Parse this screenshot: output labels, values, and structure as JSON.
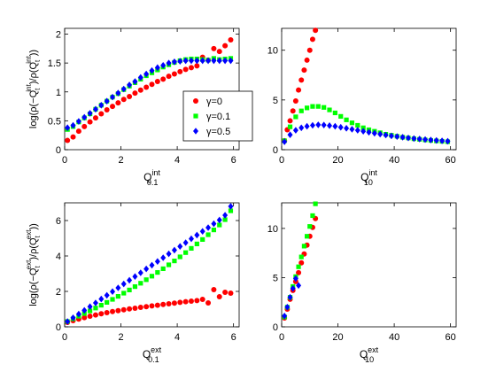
{
  "figure": {
    "colors": {
      "red": "#ff0000",
      "green": "#00ff00",
      "blue": "#0000ff",
      "axis": "#000000"
    },
    "legend_location": "right of top-left panel",
    "markers": {
      "γ=0": "circle",
      "γ=0.1": "square",
      "γ=0.5": "diamond"
    }
  },
  "chart_data": [
    {
      "type": "scatter",
      "panel": "top-left",
      "ylabel": "log(ρ(−Q_t^{int})/ρ(Q_t^{int}))",
      "xlabel": "Q_{0.1}^{int}",
      "ylabel_parts": {
        "pre": "log(ρ(−Q",
        "sub1": "t",
        "sup1": "int",
        "mid": ")/ρ(Q",
        "sub2": "t",
        "sup2": "int",
        "post": "))"
      },
      "xlabel_parts": {
        "base": "Q",
        "sub": "0.1",
        "sup": "int"
      },
      "xlim": [
        0,
        6.2
      ],
      "ylim": [
        0,
        2.1
      ],
      "xticks": [
        0,
        2,
        4,
        6
      ],
      "yticks": [
        0,
        0.5,
        1,
        1.5,
        2
      ],
      "xticklabels": [
        "0",
        "2",
        "4",
        "6"
      ],
      "yticklabels": [
        "0",
        "0.5",
        "1",
        "1.5",
        "2"
      ],
      "legend": [
        "γ=0",
        "γ=0.1",
        "γ=0.5"
      ],
      "series": [
        {
          "name": "γ=0",
          "color": "red",
          "marker": "circle",
          "x": [
            0.1,
            0.3,
            0.5,
            0.7,
            0.9,
            1.1,
            1.3,
            1.5,
            1.7,
            1.9,
            2.1,
            2.3,
            2.5,
            2.7,
            2.9,
            3.1,
            3.3,
            3.5,
            3.7,
            3.9,
            4.1,
            4.3,
            4.5,
            4.7,
            4.9,
            5.1,
            5.3,
            5.5,
            5.7,
            5.9
          ],
          "y": [
            0.16,
            0.22,
            0.32,
            0.4,
            0.48,
            0.55,
            0.62,
            0.69,
            0.75,
            0.81,
            0.87,
            0.92,
            0.98,
            1.03,
            1.08,
            1.13,
            1.18,
            1.22,
            1.27,
            1.31,
            1.35,
            1.39,
            1.42,
            1.45,
            1.6,
            1.55,
            1.75,
            1.7,
            1.8,
            1.9
          ]
        },
        {
          "name": "γ=0.1",
          "color": "green",
          "marker": "square",
          "x": [
            0.1,
            0.3,
            0.5,
            0.7,
            0.9,
            1.1,
            1.3,
            1.5,
            1.7,
            1.9,
            2.1,
            2.3,
            2.5,
            2.7,
            2.9,
            3.1,
            3.3,
            3.5,
            3.7,
            3.9,
            4.1,
            4.3,
            4.5,
            4.7,
            4.9,
            5.1,
            5.3,
            5.5,
            5.7,
            5.9
          ],
          "y": [
            0.35,
            0.4,
            0.48,
            0.55,
            0.62,
            0.7,
            0.77,
            0.84,
            0.91,
            0.97,
            1.04,
            1.1,
            1.16,
            1.22,
            1.28,
            1.33,
            1.38,
            1.43,
            1.47,
            1.51,
            1.54,
            1.56,
            1.57,
            1.57,
            1.56,
            1.55,
            1.58,
            1.56,
            1.57,
            1.58
          ]
        },
        {
          "name": "γ=0.5",
          "color": "blue",
          "marker": "diamond",
          "x": [
            0.1,
            0.3,
            0.5,
            0.7,
            0.9,
            1.1,
            1.3,
            1.5,
            1.7,
            1.9,
            2.1,
            2.3,
            2.5,
            2.7,
            2.9,
            3.1,
            3.3,
            3.5,
            3.7,
            3.9,
            4.1,
            4.3,
            4.5,
            4.7,
            4.9,
            5.1,
            5.3,
            5.5,
            5.7,
            5.9
          ],
          "y": [
            0.38,
            0.42,
            0.49,
            0.56,
            0.63,
            0.7,
            0.77,
            0.84,
            0.91,
            0.98,
            1.05,
            1.12,
            1.18,
            1.25,
            1.31,
            1.37,
            1.42,
            1.46,
            1.5,
            1.52,
            1.53,
            1.54,
            1.54,
            1.54,
            1.54,
            1.54,
            1.54,
            1.54,
            1.54,
            1.54
          ]
        }
      ]
    },
    {
      "type": "scatter",
      "panel": "top-right",
      "xlabel": "Q_{10}^{int}",
      "xlabel_parts": {
        "base": "Q",
        "sub": "10",
        "sup": "int"
      },
      "xlim": [
        0,
        62
      ],
      "ylim": [
        0,
        12.2
      ],
      "xticks": [
        0,
        20,
        40,
        60
      ],
      "yticks": [
        0,
        5,
        10
      ],
      "xticklabels": [
        "0",
        "20",
        "40",
        "60"
      ],
      "yticklabels": [
        "0",
        "5",
        "10"
      ],
      "series": [
        {
          "name": "γ=0",
          "color": "red",
          "marker": "circle",
          "x": [
            1,
            2,
            3,
            4,
            5,
            6,
            7,
            8,
            9,
            10,
            11,
            12
          ],
          "y": [
            0.9,
            2.0,
            2.9,
            3.9,
            4.9,
            6.0,
            7.0,
            8.0,
            9.0,
            10.0,
            11.1,
            12.0
          ]
        },
        {
          "name": "γ=0.1",
          "color": "green",
          "marker": "square",
          "x": [
            1,
            3,
            5,
            7,
            9,
            11,
            13,
            15,
            17,
            19,
            21,
            23,
            25,
            27,
            29,
            31,
            33,
            35,
            37,
            39,
            41,
            43,
            45,
            47,
            49,
            51,
            53,
            55,
            57,
            59
          ],
          "y": [
            0.9,
            2.3,
            3.3,
            3.9,
            4.2,
            4.35,
            4.35,
            4.25,
            4.0,
            3.7,
            3.35,
            3.0,
            2.7,
            2.45,
            2.2,
            2.0,
            1.85,
            1.7,
            1.55,
            1.45,
            1.35,
            1.25,
            1.18,
            1.1,
            1.04,
            0.98,
            0.93,
            0.88,
            0.84,
            0.8
          ]
        },
        {
          "name": "γ=0.5",
          "color": "blue",
          "marker": "diamond",
          "x": [
            1,
            3,
            5,
            7,
            9,
            11,
            13,
            15,
            17,
            19,
            21,
            23,
            25,
            27,
            29,
            31,
            33,
            35,
            37,
            39,
            41,
            43,
            45,
            47,
            49,
            51,
            53,
            55,
            57,
            59
          ],
          "y": [
            0.8,
            1.5,
            1.95,
            2.2,
            2.35,
            2.45,
            2.5,
            2.48,
            2.42,
            2.35,
            2.25,
            2.15,
            2.05,
            1.95,
            1.85,
            1.75,
            1.65,
            1.56,
            1.47,
            1.39,
            1.32,
            1.25,
            1.18,
            1.12,
            1.07,
            1.02,
            0.97,
            0.93,
            0.89,
            0.85
          ]
        }
      ]
    },
    {
      "type": "scatter",
      "panel": "bottom-left",
      "ylabel": "log(ρ(−Q_t^{ext})/ρ(Q_t^{ext}))",
      "xlabel": "Q_{0.1}^{ext}",
      "ylabel_parts": {
        "pre": "log(ρ(−Q",
        "sub1": "t",
        "sup1": "ext",
        "mid": ")/ρ(Q",
        "sub2": "t",
        "sup2": "ext",
        "post": "))"
      },
      "xlabel_parts": {
        "base": "Q",
        "sub": "0.1",
        "sup": "ext"
      },
      "xlim": [
        0,
        6.2
      ],
      "ylim": [
        0,
        7
      ],
      "xticks": [
        0,
        2,
        4,
        6
      ],
      "yticks": [
        0,
        2,
        4,
        6
      ],
      "xticklabels": [
        "0",
        "2",
        "4",
        "6"
      ],
      "yticklabels": [
        "0",
        "2",
        "4",
        "6"
      ],
      "series": [
        {
          "name": "γ=0",
          "color": "red",
          "marker": "circle",
          "x": [
            0.1,
            0.3,
            0.5,
            0.7,
            0.9,
            1.1,
            1.3,
            1.5,
            1.7,
            1.9,
            2.1,
            2.3,
            2.5,
            2.7,
            2.9,
            3.1,
            3.3,
            3.5,
            3.7,
            3.9,
            4.1,
            4.3,
            4.5,
            4.7,
            4.9,
            5.1,
            5.3,
            5.5,
            5.7,
            5.9
          ],
          "y": [
            0.25,
            0.35,
            0.44,
            0.52,
            0.6,
            0.67,
            0.74,
            0.8,
            0.86,
            0.91,
            0.96,
            1.01,
            1.05,
            1.1,
            1.14,
            1.18,
            1.22,
            1.26,
            1.3,
            1.34,
            1.38,
            1.42,
            1.45,
            1.48,
            1.55,
            1.35,
            2.1,
            1.7,
            1.95,
            1.9
          ]
        },
        {
          "name": "γ=0.1",
          "color": "green",
          "marker": "square",
          "x": [
            0.1,
            0.3,
            0.5,
            0.7,
            0.9,
            1.1,
            1.3,
            1.5,
            1.7,
            1.9,
            2.1,
            2.3,
            2.5,
            2.7,
            2.9,
            3.1,
            3.3,
            3.5,
            3.7,
            3.9,
            4.1,
            4.3,
            4.5,
            4.7,
            4.9,
            5.1,
            5.3,
            5.5,
            5.7,
            5.9
          ],
          "y": [
            0.3,
            0.45,
            0.6,
            0.75,
            0.9,
            1.06,
            1.22,
            1.38,
            1.55,
            1.72,
            1.9,
            2.08,
            2.27,
            2.46,
            2.66,
            2.86,
            3.07,
            3.28,
            3.5,
            3.72,
            3.95,
            4.19,
            4.43,
            4.68,
            4.93,
            5.2,
            5.47,
            5.75,
            6.05,
            6.55
          ]
        },
        {
          "name": "γ=0.5",
          "color": "blue",
          "marker": "diamond",
          "x": [
            0.1,
            0.3,
            0.5,
            0.7,
            0.9,
            1.1,
            1.3,
            1.5,
            1.7,
            1.9,
            2.1,
            2.3,
            2.5,
            2.7,
            2.9,
            3.1,
            3.3,
            3.5,
            3.7,
            3.9,
            4.1,
            4.3,
            4.5,
            4.7,
            4.9,
            5.1,
            5.3,
            5.5,
            5.7,
            5.9
          ],
          "y": [
            0.3,
            0.51,
            0.72,
            0.93,
            1.14,
            1.35,
            1.57,
            1.78,
            1.99,
            2.2,
            2.42,
            2.63,
            2.84,
            3.05,
            3.27,
            3.48,
            3.69,
            3.9,
            4.12,
            4.33,
            4.54,
            4.75,
            4.97,
            5.18,
            5.39,
            5.6,
            5.82,
            6.03,
            6.3,
            6.8
          ]
        }
      ]
    },
    {
      "type": "scatter",
      "panel": "bottom-right",
      "xlabel": "Q_{10}^{ext}",
      "xlabel_parts": {
        "base": "Q",
        "sub": "10",
        "sup": "ext"
      },
      "xlim": [
        0,
        62
      ],
      "ylim": [
        0,
        12.6
      ],
      "xticks": [
        0,
        20,
        40,
        60
      ],
      "yticks": [
        0,
        5,
        10
      ],
      "xticklabels": [
        "0",
        "20",
        "40",
        "60"
      ],
      "yticklabels": [
        "0",
        "5",
        "10"
      ],
      "series": [
        {
          "name": "γ=0",
          "color": "red",
          "marker": "circle",
          "x": [
            1,
            2,
            3,
            4,
            5,
            6,
            7,
            8,
            9,
            10,
            11,
            12
          ],
          "y": [
            0.9,
            1.8,
            2.8,
            3.7,
            4.6,
            5.5,
            6.5,
            7.4,
            8.3,
            9.2,
            10.1,
            11.0
          ]
        },
        {
          "name": "γ=0.1",
          "color": "green",
          "marker": "square",
          "x": [
            1,
            2,
            3,
            4,
            5,
            6,
            7,
            8,
            9,
            10,
            11,
            12
          ],
          "y": [
            1.0,
            2.0,
            3.0,
            4.1,
            5.1,
            6.1,
            7.1,
            8.2,
            9.2,
            10.2,
            11.3,
            12.5
          ]
        },
        {
          "name": "γ=0.5",
          "color": "blue",
          "marker": "diamond",
          "x": [
            1,
            2,
            3,
            4,
            5,
            6
          ],
          "y": [
            1.1,
            2.0,
            3.0,
            3.9,
            4.9,
            4.2
          ]
        }
      ]
    }
  ]
}
